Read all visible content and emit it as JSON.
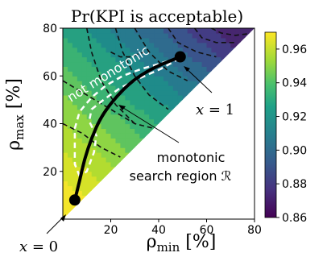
{
  "chart_data": {
    "type": "heatmap",
    "title": "Pr(KPI is acceptable)",
    "xlabel": "ρ_min [%]",
    "ylabel": "ρ_max [%]",
    "xlim": [
      0,
      80
    ],
    "ylim": [
      0,
      80
    ],
    "x_ticks": [
      20,
      40,
      60,
      80
    ],
    "y_ticks": [
      20,
      40,
      60,
      80
    ],
    "x_tick_labels": [
      "20",
      "40",
      "60",
      "80"
    ],
    "y_tick_labels": [
      "20",
      "40",
      "60",
      "80"
    ],
    "domain": "upper triangle ρ_max ≥ ρ_min",
    "colormap": "viridis",
    "colorbar": {
      "range": [
        0.86,
        0.97
      ],
      "ticks": [
        0.86,
        0.88,
        0.9,
        0.92,
        0.94,
        0.96
      ],
      "tick_labels": [
        "0.86",
        "0.88",
        "0.90",
        "0.92",
        "0.94",
        "0.96"
      ]
    },
    "search_path": {
      "label": "monotonic search region",
      "points": [
        [
          5,
          8
        ],
        [
          7,
          16
        ],
        [
          9,
          25
        ],
        [
          12,
          34
        ],
        [
          16,
          43
        ],
        [
          22,
          51
        ],
        [
          29,
          58
        ],
        [
          37,
          63
        ],
        [
          44,
          66
        ],
        [
          49,
          68
        ]
      ],
      "start": {
        "x": 5,
        "y": 8,
        "label": "x = 0"
      },
      "end": {
        "x": 49,
        "y": 68,
        "label": "x = 1"
      }
    },
    "non_monotonic_region": {
      "label": "not monotonic",
      "boundary": [
        [
          7,
          18
        ],
        [
          5,
          23
        ],
        [
          5,
          38
        ],
        [
          7,
          45
        ],
        [
          12,
          51
        ],
        [
          18,
          56
        ],
        [
          25,
          60
        ],
        [
          33,
          63
        ],
        [
          40,
          65
        ],
        [
          46,
          67
        ],
        [
          49,
          67.5
        ],
        [
          41,
          63
        ],
        [
          32,
          59
        ],
        [
          24,
          55
        ],
        [
          17,
          50
        ],
        [
          12,
          46
        ],
        [
          11,
          41
        ],
        [
          14,
          35
        ],
        [
          13,
          28
        ],
        [
          10,
          20
        ],
        [
          7,
          18
        ]
      ]
    },
    "annotations": [
      {
        "text": "not monotonic"
      },
      {
        "text": "x = 1"
      },
      {
        "text": "monotonic"
      },
      {
        "text": "search region ℛ"
      },
      {
        "text": "x = 0"
      }
    ],
    "grid": false,
    "contour_lines": "dashed black"
  }
}
